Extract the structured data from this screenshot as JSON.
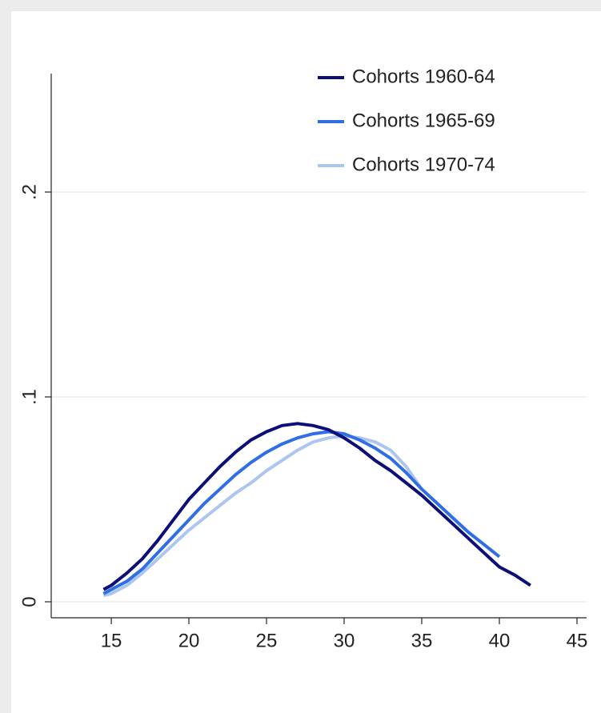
{
  "chart_data": {
    "type": "line",
    "series": [
      {
        "name": "Cohorts 1960-64",
        "color": "#0c0f78",
        "x": [
          14.5,
          15,
          16,
          17,
          18,
          19,
          20,
          21,
          22,
          23,
          24,
          25,
          26,
          27,
          28,
          29,
          30,
          31,
          32,
          33,
          34,
          35,
          36,
          37,
          38,
          39,
          40,
          41,
          42
        ],
        "values": [
          0.006,
          0.008,
          0.014,
          0.021,
          0.03,
          0.04,
          0.05,
          0.058,
          0.066,
          0.073,
          0.079,
          0.083,
          0.086,
          0.087,
          0.086,
          0.084,
          0.08,
          0.075,
          0.069,
          0.064,
          0.058,
          0.052,
          0.045,
          0.038,
          0.031,
          0.024,
          0.017,
          0.013,
          0.008
        ]
      },
      {
        "name": "Cohorts 1965-69",
        "color": "#2f6ee6",
        "x": [
          14.5,
          15,
          16,
          17,
          18,
          19,
          20,
          21,
          22,
          23,
          24,
          25,
          26,
          27,
          28,
          29,
          30,
          31,
          32,
          33,
          34,
          35,
          36,
          37,
          38,
          39,
          40
        ],
        "values": [
          0.004,
          0.006,
          0.01,
          0.016,
          0.024,
          0.032,
          0.04,
          0.048,
          0.055,
          0.062,
          0.068,
          0.073,
          0.077,
          0.08,
          0.082,
          0.083,
          0.082,
          0.079,
          0.075,
          0.07,
          0.063,
          0.055,
          0.048,
          0.041,
          0.034,
          0.028,
          0.022
        ]
      },
      {
        "name": "Cohorts 1970-74",
        "color": "#adc6f0",
        "x": [
          14.5,
          15,
          16,
          17,
          18,
          19,
          20,
          21,
          22,
          23,
          24,
          25,
          26,
          27,
          28,
          29,
          30,
          31,
          32,
          33,
          34,
          35
        ],
        "values": [
          0.003,
          0.004,
          0.008,
          0.014,
          0.021,
          0.028,
          0.035,
          0.041,
          0.047,
          0.053,
          0.058,
          0.064,
          0.069,
          0.074,
          0.078,
          0.08,
          0.081,
          0.08,
          0.078,
          0.074,
          0.066,
          0.055
        ]
      }
    ],
    "xlim": [
      11.13,
      45.62
    ],
    "xticks": [
      15,
      20,
      25,
      30,
      35,
      40,
      45
    ],
    "ylim": [
      -0.0078,
      0.2578
    ],
    "yticks": [
      0,
      {
        "value": 0.1,
        "label": ".1"
      },
      {
        "value": 0.2,
        "label": ".2"
      }
    ],
    "grid": true,
    "legend": "top-right"
  }
}
